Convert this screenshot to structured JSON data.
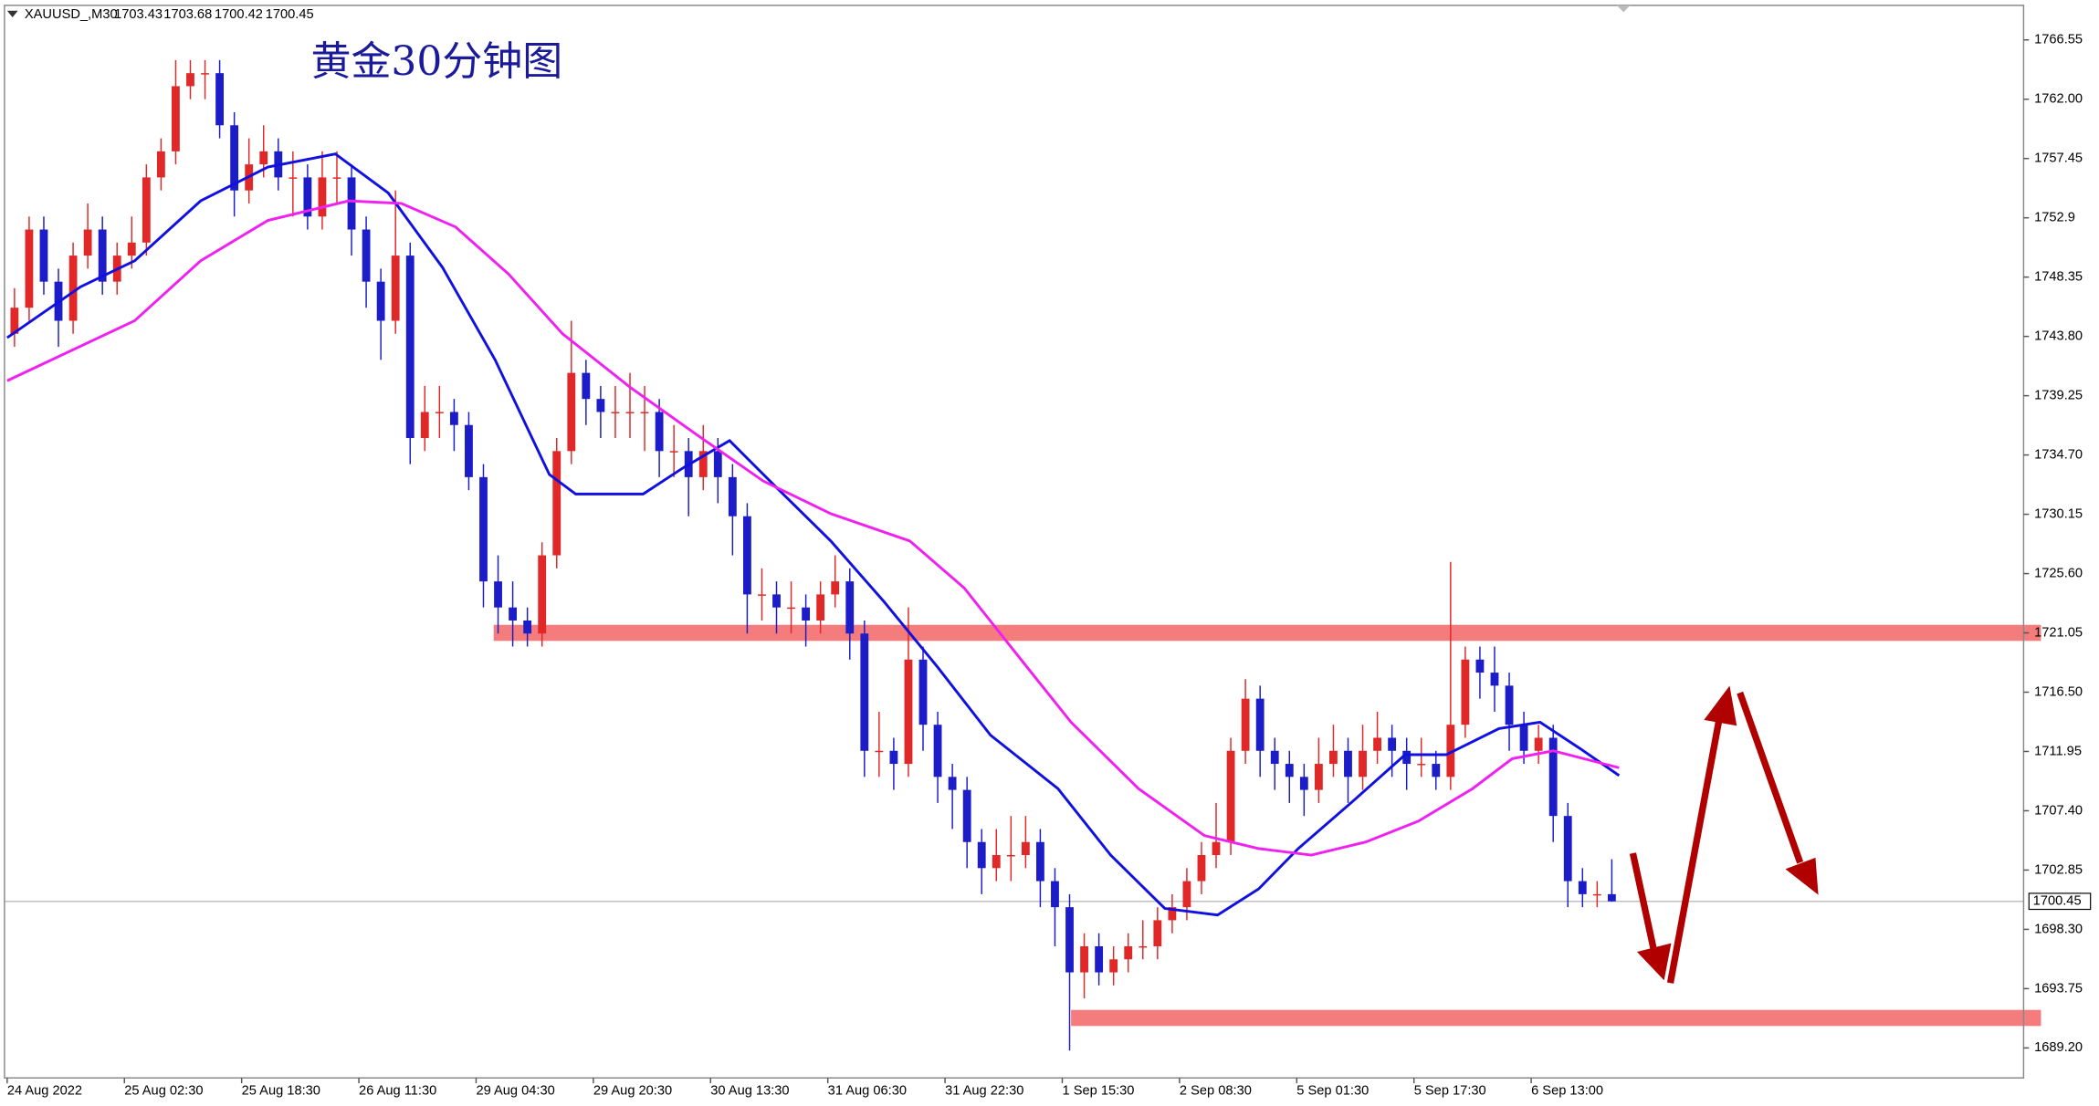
{
  "header": {
    "symbol": "XAUUSD_,M30",
    "ohlc": [
      1703.43,
      1703.68,
      1700.42,
      1700.45
    ]
  },
  "chart_data": {
    "type": "candlestick",
    "title": "黄金30分钟图",
    "up_color": "#e02828",
    "down_color": "#1c1cc8",
    "open": [
      1744,
      1746,
      1752,
      1748,
      1745,
      1750,
      1752,
      1748,
      1750,
      1751,
      1756,
      1758,
      1763,
      1764,
      1764,
      1760,
      1755,
      1757,
      1758,
      1756,
      1756,
      1753,
      1756,
      1756,
      1752,
      1748,
      1745,
      1750,
      1736,
      1738,
      1738,
      1737,
      1733,
      1725,
      1723,
      1722,
      1721,
      1727,
      1735,
      1741,
      1739,
      1738,
      1738,
      1738,
      1738,
      1735,
      1735,
      1733,
      1735,
      1733,
      1730,
      1724,
      1724,
      1723,
      1723,
      1722,
      1724,
      1725,
      1721,
      1712,
      1712,
      1711,
      1719,
      1714,
      1710,
      1709,
      1705,
      1703,
      1704,
      1704,
      1705,
      1702,
      1700,
      1695,
      1697,
      1695,
      1696,
      1697,
      1697,
      1699,
      1700,
      1702,
      1704,
      1705,
      1712,
      1716,
      1712,
      1711,
      1710,
      1709,
      1711,
      1712,
      1710,
      1712,
      1713,
      1712,
      1711,
      1711,
      1710,
      1714,
      1719,
      1718,
      1717,
      1714,
      1712,
      1713,
      1707,
      1702,
      1701,
      1701
    ],
    "high": [
      1747.5,
      1753,
      1753,
      1749,
      1751,
      1754,
      1753,
      1751,
      1753,
      1757,
      1759,
      1765,
      1765,
      1765,
      1765,
      1761,
      1759,
      1760,
      1759,
      1758,
      1757,
      1758,
      1758,
      1757,
      1753,
      1749,
      1755,
      1751,
      1740,
      1740,
      1739,
      1738,
      1734,
      1727,
      1725,
      1723,
      1728,
      1736,
      1745,
      1742,
      1740,
      1740,
      1741,
      1740,
      1739,
      1737,
      1736,
      1737,
      1736,
      1734,
      1731,
      1726,
      1725,
      1725,
      1724,
      1725,
      1727,
      1726,
      1722,
      1715,
      1713,
      1723,
      1720,
      1715,
      1711,
      1710,
      1706,
      1706,
      1707,
      1707,
      1706,
      1703,
      1701,
      1698,
      1698,
      1697,
      1698,
      1699,
      1700,
      1701,
      1703,
      1705,
      1708,
      1713,
      1717.5,
      1717,
      1713,
      1712,
      1711,
      1713,
      1714,
      1713,
      1714,
      1715,
      1714,
      1713,
      1713,
      1712,
      1726.5,
      1720,
      1720,
      1720,
      1718,
      1715,
      1714,
      1714,
      1708,
      1703,
      1702,
      1703.68
    ],
    "low": [
      1743,
      1745,
      1747,
      1743,
      1744,
      1749,
      1747,
      1747,
      1749,
      1750,
      1755,
      1757,
      1762,
      1762,
      1759,
      1753,
      1754,
      1756,
      1755,
      1753,
      1752,
      1752,
      1754,
      1750,
      1746,
      1742,
      1744,
      1734,
      1735,
      1736,
      1735,
      1732,
      1723,
      1721,
      1720,
      1720,
      1720,
      1726,
      1734,
      1737,
      1736,
      1736,
      1736,
      1735,
      1733,
      1733,
      1730,
      1732,
      1731,
      1727,
      1721,
      1722,
      1721,
      1721,
      1720,
      1721,
      1723,
      1719,
      1710,
      1710,
      1709,
      1710,
      1712,
      1708,
      1706,
      1703,
      1701,
      1702,
      1702,
      1703,
      1700,
      1697,
      1689,
      1693,
      1694,
      1694,
      1695,
      1696,
      1696,
      1698,
      1699,
      1701,
      1703,
      1704,
      1711,
      1710,
      1709,
      1708,
      1707,
      1708,
      1710,
      1708,
      1709,
      1711,
      1710,
      1709,
      1710,
      1709,
      1709,
      1713,
      1716,
      1715,
      1712,
      1711,
      1711,
      1705,
      1700,
      1700,
      1700,
      1700.42
    ],
    "close": [
      1746,
      1752,
      1748,
      1745,
      1750,
      1752,
      1748,
      1750,
      1751,
      1756,
      1758,
      1763,
      1764,
      1764,
      1760,
      1755,
      1757,
      1758,
      1756,
      1756,
      1753,
      1756,
      1756,
      1752,
      1748,
      1745,
      1750,
      1736,
      1738,
      1738,
      1737,
      1733,
      1725,
      1723,
      1722,
      1721,
      1727,
      1735,
      1741,
      1739,
      1738,
      1738,
      1738,
      1738,
      1735,
      1735,
      1733,
      1735,
      1733,
      1730,
      1724,
      1724,
      1723,
      1723,
      1722,
      1724,
      1725,
      1721,
      1712,
      1712,
      1711,
      1719,
      1714,
      1710,
      1709,
      1705,
      1703,
      1704,
      1704,
      1705,
      1702,
      1700,
      1695,
      1697,
      1695,
      1696,
      1697,
      1697,
      1699,
      1700,
      1702,
      1704,
      1705,
      1712,
      1716,
      1712,
      1711,
      1710,
      1709,
      1711,
      1712,
      1710,
      1712,
      1713,
      1712,
      1711,
      1711,
      1710,
      1714,
      1719,
      1718,
      1717,
      1714,
      1712,
      1713,
      1707,
      1702,
      1701,
      1701,
      1700.45
    ],
    "lines": [
      {
        "color": "#1010e0",
        "x": [
          0,
          5,
          8.7,
          13.2,
          17.8,
          22.4,
          26,
          29.7,
          33.3,
          37,
          38.8,
          43.4,
          46.1,
          49.3,
          52.5,
          56.2,
          59.8,
          63.5,
          67.1,
          71.7,
          75.3,
          79,
          82.6,
          85.4,
          88.1,
          91.8,
          95.4,
          98.2,
          101.8,
          104.6,
          107.3,
          110
        ],
        "values": [
          1743.7,
          1747.6,
          1749.6,
          1754.2,
          1756.8,
          1757.8,
          1754.8,
          1749.1,
          1742,
          1733.2,
          1731.7,
          1731.7,
          1733.7,
          1735.8,
          1732.2,
          1728.1,
          1723.5,
          1718.4,
          1713.2,
          1709.1,
          1704,
          1699.9,
          1699.4,
          1701.4,
          1704.5,
          1708.1,
          1711.7,
          1711.7,
          1713.7,
          1714.2,
          1712.2,
          1710.1
        ]
      },
      {
        "color": "#f020f0",
        "x": [
          0,
          8.7,
          13.2,
          17.8,
          23.3,
          26.9,
          30.6,
          34.2,
          37.9,
          42.5,
          47,
          51.6,
          56.2,
          61.6,
          65.3,
          68.9,
          72.6,
          77.2,
          81.7,
          85.4,
          89,
          92.7,
          96.3,
          100,
          102.7,
          105.5,
          110
        ],
        "values": [
          1740.4,
          1745,
          1749.6,
          1752.7,
          1754.2,
          1754,
          1752.2,
          1748.6,
          1744,
          1739.9,
          1736.3,
          1732.7,
          1730.2,
          1728.1,
          1724.5,
          1719.4,
          1714.2,
          1709.1,
          1705.5,
          1704.5,
          1704,
          1705,
          1706.6,
          1709.1,
          1711.4,
          1712,
          1710.7
        ]
      }
    ],
    "zones": [
      {
        "value": 1721.05,
        "start": 33.2,
        "color": "#f47c7c"
      },
      {
        "value": 1691.5,
        "start": 72.6,
        "color": "#f47c7c"
      }
    ],
    "xlim": [
      0,
      137.6
    ],
    "xticks": [
      {
        "value": 0,
        "label": "24 Aug 2022"
      },
      {
        "value": 8,
        "label": "25 Aug 02:30"
      },
      {
        "value": 16,
        "label": "25 Aug 18:30"
      },
      {
        "value": 24,
        "label": "26 Aug 11:30"
      },
      {
        "value": 32,
        "label": "29 Aug 04:30"
      },
      {
        "value": 40,
        "label": "29 Aug 20:30"
      },
      {
        "value": 48,
        "label": "30 Aug 13:30"
      },
      {
        "value": 56,
        "label": "31 Aug 06:30"
      },
      {
        "value": 64,
        "label": "31 Aug 22:30"
      },
      {
        "value": 72,
        "label": "1 Sep 15:30"
      },
      {
        "value": 80,
        "label": "2 Sep 08:30"
      },
      {
        "value": 88,
        "label": "5 Sep 01:30"
      },
      {
        "value": 96,
        "label": "5 Sep 17:30"
      },
      {
        "value": 104,
        "label": "6 Sep 13:00"
      }
    ],
    "ylim": [
      1686.9,
      1769.1
    ],
    "yticks": [
      1766.55,
      {
        "value": 1762,
        "label": "1762.00"
      },
      1757.45,
      1752.9,
      1748.35,
      {
        "value": 1743.8,
        "label": "1743.80"
      },
      1739.25,
      {
        "value": 1734.7,
        "label": "1734.70"
      },
      1730.15,
      {
        "value": 1725.6,
        "label": "1725.60"
      },
      1721.05,
      {
        "value": 1716.5,
        "label": "1716.50"
      },
      1711.95,
      {
        "value": 1707.4,
        "label": "1707.40"
      },
      1702.85,
      {
        "value": 1698.3,
        "label": "1698.30"
      },
      1693.75,
      {
        "value": 1689.2,
        "label": "1689.20"
      }
    ]
  }
}
